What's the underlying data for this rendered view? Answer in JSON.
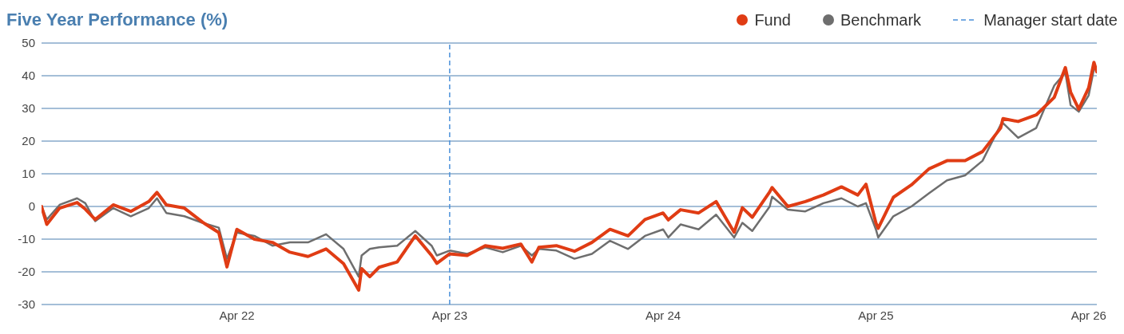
{
  "chart_data": {
    "type": "line",
    "title": "Five Year Performance (%)",
    "x": [
      "2021-05-01",
      "2021-05-10",
      "2021-06-01",
      "2021-07-01",
      "2021-07-15",
      "2021-08-01",
      "2021-09-01",
      "2021-10-01",
      "2021-11-01",
      "2021-11-15",
      "2021-12-01",
      "2022-01-01",
      "2022-02-01",
      "2022-03-01",
      "2022-03-15",
      "2022-04-01",
      "2022-05-01",
      "2022-06-01",
      "2022-07-01",
      "2022-08-01",
      "2022-09-01",
      "2022-10-01",
      "2022-10-27",
      "2022-11-01",
      "2022-11-15",
      "2022-12-01",
      "2023-01-01",
      "2023-02-01",
      "2023-03-01",
      "2023-03-10",
      "2023-04-01",
      "2023-05-01",
      "2023-06-01",
      "2023-07-01",
      "2023-08-01",
      "2023-08-20",
      "2023-09-01",
      "2023-10-01",
      "2023-11-01",
      "2023-12-01",
      "2024-01-01",
      "2024-02-01",
      "2024-03-01",
      "2024-04-01",
      "2024-04-10",
      "2024-05-01",
      "2024-06-01",
      "2024-07-01",
      "2024-08-01",
      "2024-08-15",
      "2024-09-01",
      "2024-10-01",
      "2024-10-05",
      "2024-11-01",
      "2024-12-01",
      "2025-01-01",
      "2025-02-01",
      "2025-03-01",
      "2025-03-15",
      "2025-04-01",
      "2025-04-05",
      "2025-05-01",
      "2025-06-01",
      "2025-07-01",
      "2025-08-01",
      "2025-09-01",
      "2025-10-01",
      "2025-11-01",
      "2025-11-05",
      "2025-12-01",
      "2026-01-01",
      "2026-02-01",
      "2026-02-20",
      "2026-03-01",
      "2026-03-15",
      "2026-04-01",
      "2026-04-10",
      "2026-04-15"
    ],
    "series": [
      {
        "name": "Benchmark",
        "color": "#6e6e6e",
        "values": [
          0,
          -4,
          0.5,
          2.5,
          1,
          -4.5,
          -0.5,
          -3,
          -0.5,
          2.5,
          -2,
          -3,
          -5,
          -6.5,
          -16,
          -8,
          -9,
          -12,
          -11,
          -11,
          -8.5,
          -13,
          -21.5,
          -15,
          -13,
          -12.5,
          -12,
          -7.5,
          -12,
          -15,
          -13.5,
          -14.5,
          -12.5,
          -14,
          -12,
          -15,
          -13,
          -13.5,
          -16,
          -14.5,
          -10.5,
          -13,
          -9,
          -7,
          -9.5,
          -5.5,
          -7,
          -2.5,
          -9.5,
          -5,
          -7.5,
          0,
          3,
          -1,
          -1.5,
          1,
          2.5,
          0,
          1,
          -7,
          -9.5,
          -3,
          0,
          4,
          8,
          9.5,
          14,
          25,
          25.5,
          21,
          24,
          37,
          41,
          31,
          29,
          34,
          42,
          42
        ]
      },
      {
        "name": "Fund",
        "color": "#e03c14",
        "values": [
          0,
          -5.5,
          -0.5,
          1.2,
          -0.8,
          -4,
          0.5,
          -1.5,
          1.5,
          4.3,
          0.5,
          -0.5,
          -4.8,
          -8,
          -18.5,
          -7,
          -10,
          -11,
          -14,
          -15.3,
          -13,
          -17.5,
          -25.6,
          -19,
          -21.5,
          -18.6,
          -17,
          -9,
          -15,
          -17.4,
          -14.5,
          -15,
          -12,
          -12.8,
          -11.5,
          -17,
          -12.5,
          -12,
          -13.7,
          -11,
          -7,
          -9,
          -4,
          -2,
          -4.1,
          -1,
          -2,
          1.5,
          -7.9,
          -0.4,
          -3.3,
          4.5,
          5.8,
          0,
          1.5,
          3.5,
          6,
          3.5,
          6.8,
          -5,
          -6.7,
          2.8,
          6.6,
          11.5,
          14,
          14,
          16.8,
          24,
          26.9,
          26,
          28,
          33.4,
          42.5,
          35,
          29.8,
          36.3,
          44.1,
          41.2
        ]
      }
    ],
    "xlim": [
      "2021-05-01",
      "2026-04-15"
    ],
    "xticks": [
      {
        "value": "2022-04-01",
        "label": "Apr 22"
      },
      {
        "value": "2023-04-01",
        "label": "Apr 23"
      },
      {
        "value": "2024-04-01",
        "label": "Apr 24"
      },
      {
        "value": "2025-04-01",
        "label": "Apr 25"
      },
      {
        "value": "2026-04-01",
        "label": "Apr 26"
      }
    ],
    "ylim": [
      -30,
      50
    ],
    "yticks": [
      -30,
      -20,
      -10,
      0,
      10,
      20,
      30,
      40,
      50
    ],
    "ref_lines": [
      {
        "axis": "x",
        "value": "2023-04-01",
        "label": "Manager start date",
        "color": "#4a90d9",
        "line_style": "dashed"
      }
    ],
    "grid": "y",
    "legend": "top right",
    "marker": "none",
    "line_style": "solid"
  }
}
